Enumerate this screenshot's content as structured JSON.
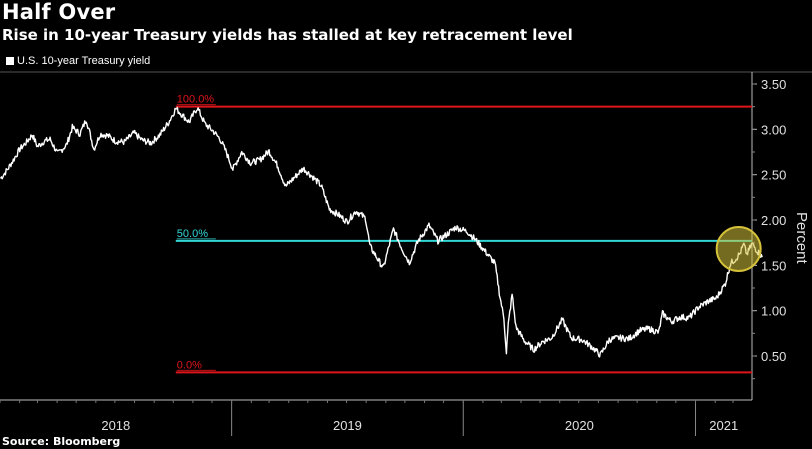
{
  "title": "Half Over",
  "subtitle": "Rise in 10-year Treasury yields has stalled at key retracement level",
  "legend": {
    "label": "U.S. 10-year Treasury yield",
    "icon": "white-square-swatch"
  },
  "source": "Source: Bloomberg",
  "colors": {
    "background": "#000000",
    "series": "#ffffff",
    "level_100": "#e0151b",
    "level_50": "#33d6d6",
    "level_0": "#e0151b",
    "highlight": "#d6c23a"
  },
  "chart_data": {
    "type": "line",
    "title": "Half Over",
    "subtitle": "Rise in 10-year Treasury yields has stalled at key retracement level",
    "ylabel": "Percent",
    "ylim": [
      0.15,
      3.55
    ],
    "y_axis_position": "right",
    "yticks": [
      "0.50",
      "1.00",
      "1.50",
      "2.00",
      "2.50",
      "3.00",
      "3.50"
    ],
    "xlim": [
      "2018-01-01",
      "2021-03-31"
    ],
    "x_tick_labels": [
      "2018",
      "2019",
      "2020",
      "2021"
    ],
    "grid": false,
    "legend": "top-left",
    "reference_lines": [
      {
        "label": "100.0%",
        "value": 3.25,
        "color": "#e0151b",
        "start": "2018-10-05"
      },
      {
        "label": "50.0%",
        "value": 1.77,
        "color": "#33d6d6",
        "start": "2018-10-05"
      },
      {
        "label": "0.0%",
        "value": 0.32,
        "color": "#e0151b",
        "start": "2018-10-05"
      }
    ],
    "highlight": {
      "date": "2021-03-10",
      "value": 1.68,
      "color": "#d6c23a"
    },
    "series": [
      {
        "name": "U.S. 10-year Treasury yield",
        "color": "#ffffff",
        "points": [
          [
            "2018-01-02",
            2.46
          ],
          [
            "2018-01-12",
            2.55
          ],
          [
            "2018-01-22",
            2.66
          ],
          [
            "2018-02-01",
            2.78
          ],
          [
            "2018-02-12",
            2.86
          ],
          [
            "2018-02-21",
            2.94
          ],
          [
            "2018-03-01",
            2.81
          ],
          [
            "2018-03-12",
            2.87
          ],
          [
            "2018-03-21",
            2.89
          ],
          [
            "2018-04-02",
            2.73
          ],
          [
            "2018-04-16",
            2.83
          ],
          [
            "2018-04-25",
            3.02
          ],
          [
            "2018-05-07",
            2.95
          ],
          [
            "2018-05-17",
            3.11
          ],
          [
            "2018-05-29",
            2.78
          ],
          [
            "2018-06-08",
            2.95
          ],
          [
            "2018-06-20",
            2.93
          ],
          [
            "2018-07-02",
            2.87
          ],
          [
            "2018-07-16",
            2.86
          ],
          [
            "2018-07-31",
            2.96
          ],
          [
            "2018-08-13",
            2.88
          ],
          [
            "2018-08-27",
            2.85
          ],
          [
            "2018-09-10",
            2.94
          ],
          [
            "2018-09-24",
            3.08
          ],
          [
            "2018-10-05",
            3.23
          ],
          [
            "2018-10-15",
            3.16
          ],
          [
            "2018-10-26",
            3.08
          ],
          [
            "2018-11-08",
            3.24
          ],
          [
            "2018-11-20",
            3.06
          ],
          [
            "2018-12-03",
            2.98
          ],
          [
            "2018-12-14",
            2.89
          ],
          [
            "2018-12-24",
            2.74
          ],
          [
            "2019-01-03",
            2.56
          ],
          [
            "2019-01-17",
            2.75
          ],
          [
            "2019-01-31",
            2.63
          ],
          [
            "2019-02-14",
            2.66
          ],
          [
            "2019-03-01",
            2.76
          ],
          [
            "2019-03-15",
            2.59
          ],
          [
            "2019-03-27",
            2.37
          ],
          [
            "2019-04-10",
            2.47
          ],
          [
            "2019-04-24",
            2.57
          ],
          [
            "2019-05-08",
            2.48
          ],
          [
            "2019-05-22",
            2.38
          ],
          [
            "2019-06-04",
            2.12
          ],
          [
            "2019-06-18",
            2.06
          ],
          [
            "2019-07-02",
            1.98
          ],
          [
            "2019-07-16",
            2.1
          ],
          [
            "2019-07-31",
            2.02
          ],
          [
            "2019-08-07",
            1.71
          ],
          [
            "2019-08-20",
            1.56
          ],
          [
            "2019-08-28",
            1.47
          ],
          [
            "2019-09-13",
            1.9
          ],
          [
            "2019-09-26",
            1.69
          ],
          [
            "2019-10-08",
            1.53
          ],
          [
            "2019-10-22",
            1.77
          ],
          [
            "2019-11-08",
            1.94
          ],
          [
            "2019-11-22",
            1.77
          ],
          [
            "2019-12-06",
            1.84
          ],
          [
            "2019-12-20",
            1.92
          ],
          [
            "2020-01-08",
            1.87
          ],
          [
            "2020-01-22",
            1.77
          ],
          [
            "2020-02-05",
            1.65
          ],
          [
            "2020-02-20",
            1.52
          ],
          [
            "2020-02-28",
            1.15
          ],
          [
            "2020-03-05",
            0.92
          ],
          [
            "2020-03-09",
            0.54
          ],
          [
            "2020-03-12",
            0.85
          ],
          [
            "2020-03-18",
            1.18
          ],
          [
            "2020-03-24",
            0.82
          ],
          [
            "2020-04-06",
            0.67
          ],
          [
            "2020-04-21",
            0.57
          ],
          [
            "2020-05-05",
            0.66
          ],
          [
            "2020-05-19",
            0.7
          ],
          [
            "2020-06-05",
            0.9
          ],
          [
            "2020-06-19",
            0.7
          ],
          [
            "2020-07-06",
            0.68
          ],
          [
            "2020-07-20",
            0.61
          ],
          [
            "2020-08-04",
            0.51
          ],
          [
            "2020-08-18",
            0.68
          ],
          [
            "2020-09-01",
            0.7
          ],
          [
            "2020-09-18",
            0.69
          ],
          [
            "2020-10-05",
            0.78
          ],
          [
            "2020-10-20",
            0.8
          ],
          [
            "2020-11-04",
            0.76
          ],
          [
            "2020-11-10",
            0.97
          ],
          [
            "2020-11-24",
            0.88
          ],
          [
            "2020-12-08",
            0.93
          ],
          [
            "2020-12-22",
            0.92
          ],
          [
            "2021-01-06",
            1.04
          ],
          [
            "2021-01-20",
            1.1
          ],
          [
            "2021-02-03",
            1.14
          ],
          [
            "2021-02-17",
            1.3
          ],
          [
            "2021-02-25",
            1.52
          ],
          [
            "2021-03-05",
            1.57
          ],
          [
            "2021-03-12",
            1.63
          ],
          [
            "2021-03-18",
            1.73
          ],
          [
            "2021-03-23",
            1.62
          ],
          [
            "2021-03-31",
            1.74
          ],
          [
            "2021-04-07",
            1.67
          ],
          [
            "2021-04-16",
            1.59
          ]
        ]
      }
    ]
  }
}
